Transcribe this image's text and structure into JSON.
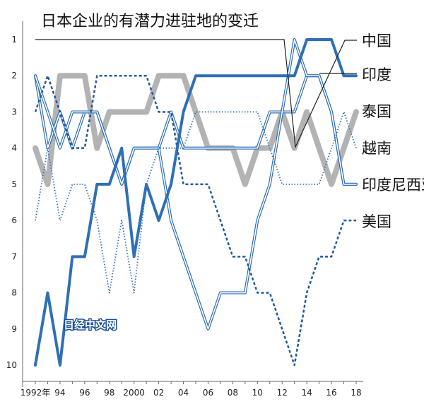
{
  "chart_data": {
    "type": "line",
    "title": "日本企业的有潜力进驻地的变迁",
    "x": [
      1992,
      1993,
      1994,
      1995,
      1996,
      1997,
      1998,
      1999,
      2000,
      2001,
      2002,
      2003,
      2004,
      2005,
      2006,
      2007,
      2008,
      2009,
      2010,
      2011,
      2012,
      2013,
      2014,
      2015,
      2016,
      2017,
      2018
    ],
    "x_tick_labels": [
      "1992年",
      "94",
      "96",
      "98",
      "2000",
      "02",
      "04",
      "06",
      "08",
      "10",
      "12",
      "14",
      "16",
      "18"
    ],
    "x_tick_values": [
      1992,
      1994,
      1996,
      1998,
      2000,
      2002,
      2004,
      2006,
      2008,
      2010,
      2012,
      2014,
      2016,
      2018
    ],
    "y_tick_labels": [
      "1",
      "2",
      "3",
      "4",
      "5",
      "6",
      "7",
      "8",
      "9",
      "10"
    ],
    "ylim": [
      1,
      10
    ],
    "y_inverted": true,
    "xlabel": "",
    "ylabel": "",
    "series": [
      {
        "name": "中国",
        "color": "#2f6fb5",
        "style": "solid-thick",
        "values": [
          10,
          8,
          10,
          7,
          7,
          5,
          5,
          4,
          7,
          5,
          6,
          5,
          3,
          2,
          2,
          2,
          2,
          2,
          2,
          2,
          2,
          2,
          1,
          1,
          1,
          2,
          2
        ]
      },
      {
        "name": "印度",
        "color": "#2f6fb5",
        "style": "double",
        "values": [
          2,
          3,
          4,
          3,
          3,
          3,
          4,
          5,
          4,
          4,
          4,
          6,
          7,
          8,
          9,
          8,
          8,
          8,
          6,
          5,
          3,
          1,
          2,
          2,
          3,
          5,
          5
        ]
      },
      {
        "name": "泰国",
        "color": "#b3b3b3",
        "style": "solid-thick",
        "values": [
          4,
          5,
          2,
          2,
          2,
          4,
          3,
          3,
          3,
          3,
          2,
          2,
          2,
          3,
          4,
          4,
          4,
          5,
          4,
          4,
          3,
          4,
          3,
          4,
          5,
          4,
          3
        ]
      },
      {
        "name": "越南",
        "color": "#2f6fb5",
        "style": "dotted",
        "values": [
          6,
          4,
          6,
          5,
          5,
          6,
          8,
          6,
          8,
          5,
          4,
          4,
          4,
          3,
          3,
          3,
          3,
          3,
          3,
          4,
          5,
          5,
          5,
          5,
          4,
          3,
          4
        ]
      },
      {
        "name": "印度尼西亚",
        "color": "#2f6fb5",
        "style": "double",
        "values": [
          2,
          4,
          3,
          4,
          3,
          3,
          4,
          5,
          4,
          4,
          4,
          3,
          4,
          4,
          4,
          4,
          4,
          4,
          4,
          3,
          3,
          3,
          2,
          2,
          3,
          5,
          5
        ]
      },
      {
        "name": "美国",
        "color": "#1f5a9e",
        "style": "dashed",
        "values": [
          3,
          2,
          3,
          4,
          4,
          2,
          2,
          2,
          2,
          2,
          3,
          3,
          5,
          5,
          5,
          6,
          7,
          7,
          8,
          8,
          9,
          10,
          8,
          7,
          7,
          6,
          6
        ]
      }
    ],
    "grid": false,
    "legend_placement": "right"
  },
  "watermark": "日经中文网"
}
